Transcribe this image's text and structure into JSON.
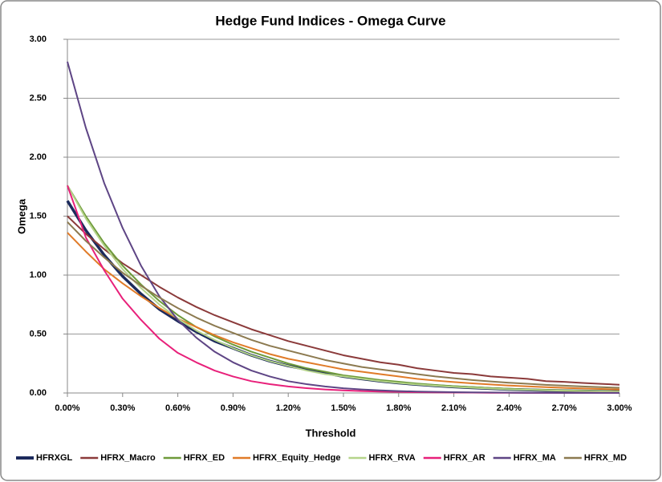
{
  "chart_data": {
    "type": "line",
    "title": "Hedge Fund Indices - Omega Curve",
    "x_label": "Threshold",
    "y_label": "Omega",
    "x": [
      0,
      0.1,
      0.2,
      0.3,
      0.4,
      0.5,
      0.6,
      0.7,
      0.8,
      0.9,
      1.0,
      1.1,
      1.2,
      1.3,
      1.4,
      1.5,
      1.6,
      1.7,
      1.8,
      1.9,
      2.0,
      2.1,
      2.2,
      2.3,
      2.4,
      2.5,
      2.6,
      2.7,
      2.8,
      2.9,
      3.0
    ],
    "xlim": [
      0,
      3
    ],
    "ylim": [
      0,
      3
    ],
    "xticks": [
      {
        "value": 0,
        "label": "0.00%"
      },
      {
        "value": 0.3,
        "label": "0.30%"
      },
      {
        "value": 0.6,
        "label": "0.60%"
      },
      {
        "value": 0.9,
        "label": "0.90%"
      },
      {
        "value": 1.2,
        "label": "1.20%"
      },
      {
        "value": 1.5,
        "label": "1.50%"
      },
      {
        "value": 1.8,
        "label": "1.80%"
      },
      {
        "value": 2.1,
        "label": "2.10%"
      },
      {
        "value": 2.4,
        "label": "2.40%"
      },
      {
        "value": 2.7,
        "label": "2.70%"
      },
      {
        "value": 3,
        "label": "3.00%"
      }
    ],
    "yticks": [
      {
        "value": 0,
        "label": "0.00"
      },
      {
        "value": 0.5,
        "label": "0.50"
      },
      {
        "value": 1,
        "label": "1.00"
      },
      {
        "value": 1.5,
        "label": "1.50"
      },
      {
        "value": 2,
        "label": "2.00"
      },
      {
        "value": 2.5,
        "label": "2.50"
      },
      {
        "value": 3,
        "label": "3.00"
      }
    ],
    "grid": true,
    "legend": "bottom",
    "series": [
      {
        "name": "HFRXGL",
        "color": "#1c2a5c",
        "values": [
          1.63,
          1.38,
          1.17,
          0.99,
          0.84,
          0.71,
          0.61,
          0.52,
          0.44,
          0.38,
          0.32,
          0.27,
          0.23,
          0.2,
          0.17,
          0.14,
          0.12,
          0.1,
          0.085,
          0.072,
          0.061,
          0.052,
          0.044,
          0.037,
          0.031,
          0.026,
          0.022,
          0.019,
          0.016,
          0.014,
          0.012
        ]
      },
      {
        "name": "HFRX_Macro",
        "color": "#8b3a3a",
        "values": [
          1.5,
          1.35,
          1.22,
          1.1,
          1.0,
          0.9,
          0.81,
          0.73,
          0.66,
          0.6,
          0.54,
          0.49,
          0.44,
          0.4,
          0.36,
          0.32,
          0.29,
          0.26,
          0.24,
          0.21,
          0.19,
          0.17,
          0.16,
          0.14,
          0.13,
          0.12,
          0.1,
          0.094,
          0.085,
          0.077,
          0.07
        ]
      },
      {
        "name": "HFRX_ED",
        "color": "#6e9a3a",
        "values": [
          1.76,
          1.5,
          1.27,
          1.08,
          0.92,
          0.78,
          0.66,
          0.56,
          0.48,
          0.41,
          0.35,
          0.3,
          0.25,
          0.21,
          0.18,
          0.15,
          0.13,
          0.11,
          0.095,
          0.08,
          0.068,
          0.058,
          0.05,
          0.042,
          0.036,
          0.03,
          0.026,
          0.022,
          0.019,
          0.016,
          0.014
        ]
      },
      {
        "name": "HFRX_Equity_Hedge",
        "color": "#e07b28",
        "values": [
          1.36,
          1.2,
          1.05,
          0.93,
          0.82,
          0.72,
          0.63,
          0.56,
          0.49,
          0.43,
          0.38,
          0.33,
          0.29,
          0.26,
          0.23,
          0.2,
          0.18,
          0.16,
          0.14,
          0.12,
          0.105,
          0.093,
          0.082,
          0.072,
          0.063,
          0.056,
          0.049,
          0.043,
          0.038,
          0.034,
          0.03
        ]
      },
      {
        "name": "HFRX_RVA",
        "color": "#b5d48a",
        "values": [
          1.76,
          1.48,
          1.25,
          1.05,
          0.89,
          0.75,
          0.63,
          0.53,
          0.45,
          0.38,
          0.32,
          0.27,
          0.23,
          0.19,
          0.16,
          0.14,
          0.12,
          0.1,
          0.085,
          0.072,
          0.061,
          0.052,
          0.044,
          0.037,
          0.031,
          0.027,
          0.023,
          0.019,
          0.016,
          0.014,
          0.012
        ]
      },
      {
        "name": "HFRX_AR",
        "color": "#e8207a",
        "values": [
          1.76,
          1.32,
          1.04,
          0.8,
          0.62,
          0.46,
          0.34,
          0.26,
          0.19,
          0.14,
          0.1,
          0.075,
          0.055,
          0.041,
          0.03,
          0.022,
          0.016,
          0.012,
          0.009,
          0.007,
          0.005,
          0.004,
          0.003,
          0.002,
          0.002,
          0.001,
          0.001,
          0.001,
          0.001,
          0.0005,
          0.0005
        ]
      },
      {
        "name": "HFRX_MA",
        "color": "#5e4585",
        "values": [
          2.81,
          2.25,
          1.78,
          1.4,
          1.08,
          0.82,
          0.62,
          0.47,
          0.35,
          0.26,
          0.19,
          0.14,
          0.1,
          0.075,
          0.055,
          0.04,
          0.03,
          0.022,
          0.016,
          0.012,
          0.009,
          0.007,
          0.005,
          0.004,
          0.003,
          0.002,
          0.002,
          0.001,
          0.001,
          0.001,
          0.001
        ]
      },
      {
        "name": "HFRX_MD",
        "color": "#8c7a50",
        "values": [
          1.45,
          1.29,
          1.15,
          1.02,
          0.91,
          0.81,
          0.72,
          0.64,
          0.57,
          0.51,
          0.45,
          0.4,
          0.36,
          0.32,
          0.28,
          0.25,
          0.22,
          0.2,
          0.18,
          0.16,
          0.14,
          0.125,
          0.11,
          0.098,
          0.087,
          0.078,
          0.069,
          0.062,
          0.055,
          0.049,
          0.044
        ]
      }
    ]
  }
}
